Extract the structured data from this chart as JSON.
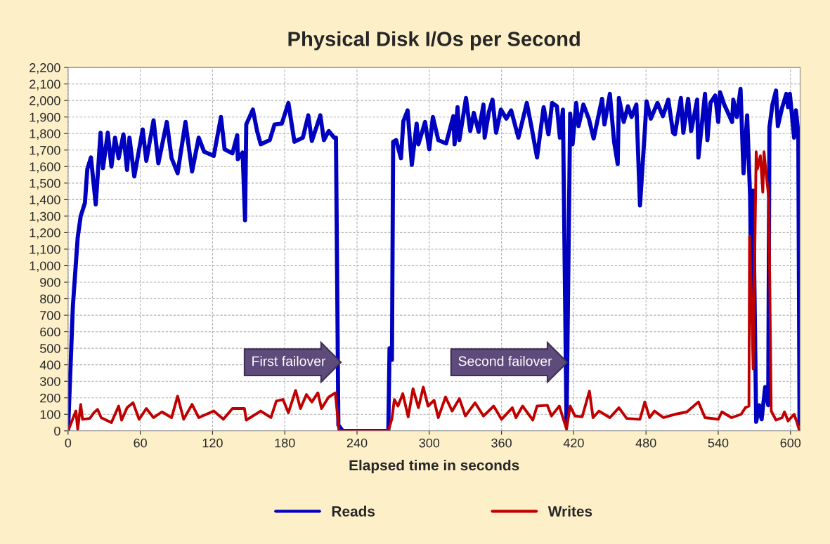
{
  "chart_data": {
    "type": "line",
    "title": "Physical Disk I/Os per Second",
    "xlabel": "Elapsed time in seconds",
    "xlim": [
      0,
      608
    ],
    "xticks": [
      0,
      60,
      120,
      180,
      240,
      300,
      360,
      420,
      480,
      540,
      600
    ],
    "ylim": [
      0,
      2200
    ],
    "yticks": [
      0,
      100,
      200,
      300,
      400,
      500,
      600,
      700,
      800,
      900,
      {
        "value": 1000,
        "label": "1,000"
      },
      {
        "value": 1100,
        "label": "1,100"
      },
      {
        "value": 1200,
        "label": "1,200"
      },
      {
        "value": 1300,
        "label": "1,300"
      },
      {
        "value": 1400,
        "label": "1,400"
      },
      {
        "value": 1500,
        "label": "1,500"
      },
      {
        "value": 1600,
        "label": "1,600"
      },
      {
        "value": 1700,
        "label": "1,700"
      },
      {
        "value": 1800,
        "label": "1,800"
      },
      {
        "value": 1900,
        "label": "1,900"
      },
      {
        "value": 2000,
        "label": "2,000"
      },
      {
        "value": 2100,
        "label": "2,100"
      },
      {
        "value": 2200,
        "label": "2,200"
      }
    ],
    "grid": true,
    "legend": "bottom",
    "marker": "none",
    "line_style": "solid",
    "annotations": [
      {
        "text": "First failover",
        "x": 226,
        "y": 415
      },
      {
        "text": "Second failover",
        "x": 414,
        "y": 415
      }
    ],
    "series": [
      {
        "name": "Reads",
        "color": "#0000c0",
        "x": [
          0,
          4,
          5,
          8,
          10.5,
          14,
          16,
          19,
          23,
          27,
          29,
          33,
          36,
          39,
          42,
          46,
          49,
          51,
          55,
          62,
          65,
          71,
          75,
          82,
          86,
          91,
          97.5,
          103,
          108.5,
          113,
          121,
          127,
          130,
          136.5,
          140.5,
          141,
          145,
          147,
          148,
          153.5,
          157,
          160,
          167.5,
          171.5,
          177.5,
          183,
          188,
          195,
          199.5,
          202.5,
          209.5,
          212.5,
          216.5,
          221,
          222.5,
          224.5,
          228,
          266,
          267,
          269,
          270,
          272.5,
          276.5,
          278.5,
          282,
          285.5,
          289.5,
          291,
          296.5,
          300,
          303,
          307.5,
          314,
          320,
          321,
          323.5,
          325,
          330.5,
          334,
          337,
          341,
          345,
          346,
          349.5,
          352.5,
          355.5,
          359.5,
          364,
          368,
          374,
          381,
          384.5,
          389.5,
          395,
          399,
          402,
          406,
          408.5,
          411,
          414,
          417,
          419,
          422,
          424,
          428,
          432.5,
          436.5,
          443.5,
          445.5,
          450,
          453.5,
          456.5,
          457.5,
          461.5,
          465,
          468,
          472,
          475,
          479,
          480.5,
          484,
          489.5,
          494,
          498.5,
          502.5,
          504,
          509,
          511,
          515,
          517.5,
          522.5,
          523.5,
          529,
          531,
          533.5,
          537.5,
          540,
          541.5,
          545,
          551.5,
          552.5,
          555.5,
          558.5,
          561,
          564,
          566.5,
          567.5,
          569,
          571.5,
          574,
          576,
          579,
          581.5,
          582.5,
          585,
          588,
          589.5,
          593,
          596.5,
          598,
          599.5,
          603,
          604.5,
          606.5,
          607.5
        ],
        "values": [
          0,
          755,
          860,
          1170,
          1300,
          1380,
          1585,
          1655,
          1370,
          1805,
          1590,
          1805,
          1600,
          1775,
          1650,
          1795,
          1580,
          1775,
          1540,
          1825,
          1635,
          1880,
          1620,
          1870,
          1650,
          1560,
          1870,
          1570,
          1775,
          1690,
          1665,
          1900,
          1705,
          1680,
          1790,
          1645,
          1685,
          1275,
          1855,
          1945,
          1815,
          1735,
          1760,
          1855,
          1860,
          1985,
          1750,
          1775,
          1910,
          1755,
          1910,
          1760,
          1815,
          1775,
          1775,
          35,
          0,
          0,
          500,
          430,
          1750,
          1760,
          1650,
          1875,
          1940,
          1610,
          1860,
          1735,
          1870,
          1705,
          1900,
          1760,
          1740,
          1905,
          1735,
          1960,
          1760,
          2015,
          1815,
          1925,
          1810,
          1975,
          1775,
          1930,
          2005,
          1805,
          1945,
          1890,
          1940,
          1775,
          1985,
          1855,
          1655,
          1960,
          1795,
          1985,
          1965,
          1775,
          1945,
          40,
          1920,
          1735,
          1985,
          1845,
          1975,
          1890,
          1770,
          2010,
          1855,
          2040,
          1750,
          1615,
          2015,
          1870,
          1965,
          1900,
          1975,
          1365,
          1815,
          1995,
          1890,
          1985,
          1905,
          2005,
          1805,
          1795,
          2015,
          1805,
          2010,
          1815,
          2005,
          1655,
          2040,
          1760,
          1985,
          2030,
          1870,
          2050,
          1975,
          1870,
          2005,
          1900,
          2070,
          1560,
          1910,
          1410,
          745,
          1455,
          55,
          155,
          70,
          265,
          155,
          1835,
          1975,
          2060,
          1845,
          1955,
          2040,
          1960,
          2040,
          1775,
          1940,
          1805,
          40
        ]
      },
      {
        "name": "Writes",
        "color": "#c00000",
        "x": [
          0,
          6.5,
          8,
          10.5,
          12,
          18,
          21.5,
          24.5,
          27.5,
          36,
          42,
          44.5,
          49,
          54,
          59,
          65,
          71,
          78,
          86,
          91,
          96,
          103,
          108.5,
          121,
          129,
          136.5,
          146.5,
          148,
          160,
          168.5,
          173,
          178.5,
          183,
          189,
          193,
          198,
          202.5,
          207.5,
          210.5,
          216.5,
          222,
          225,
          266,
          269,
          271,
          274,
          278,
          282.5,
          286.5,
          291,
          295,
          299,
          304,
          307.5,
          313.5,
          319,
          325,
          330,
          338,
          345,
          353.5,
          360,
          369,
          372,
          377.5,
          386,
          389.5,
          398,
          401.5,
          408,
          414,
          417,
          421,
          427,
          433,
          436,
          441,
          450,
          457.5,
          464,
          475,
          479,
          483,
          487,
          494.5,
          504,
          514,
          523.5,
          529,
          540,
          543,
          551,
          559,
          562.5,
          565.5,
          566,
          567.5,
          569,
          571.5,
          572.5,
          575,
          577,
          578,
          580,
          582,
          584,
          588,
          593,
          595,
          598,
          603,
          605,
          607.5
        ],
        "values": [
          0,
          120,
          10,
          160,
          70,
          75,
          110,
          130,
          80,
          50,
          150,
          65,
          140,
          170,
          70,
          135,
          80,
          115,
          80,
          210,
          70,
          160,
          80,
          120,
          70,
          135,
          135,
          65,
          120,
          80,
          180,
          190,
          110,
          245,
          135,
          220,
          175,
          230,
          135,
          205,
          230,
          0,
          0,
          75,
          190,
          150,
          225,
          85,
          255,
          140,
          265,
          150,
          185,
          80,
          205,
          120,
          195,
          90,
          170,
          90,
          150,
          70,
          140,
          80,
          150,
          65,
          150,
          155,
          90,
          150,
          10,
          150,
          90,
          85,
          240,
          80,
          120,
          80,
          140,
          75,
          70,
          175,
          80,
          120,
          80,
          100,
          115,
          175,
          80,
          70,
          115,
          80,
          100,
          140,
          150,
          1180,
          815,
          375,
          1690,
          1585,
          1665,
          1445,
          1690,
          1540,
          1410,
          120,
          65,
          80,
          115,
          60,
          100,
          60,
          0
        ]
      }
    ]
  }
}
